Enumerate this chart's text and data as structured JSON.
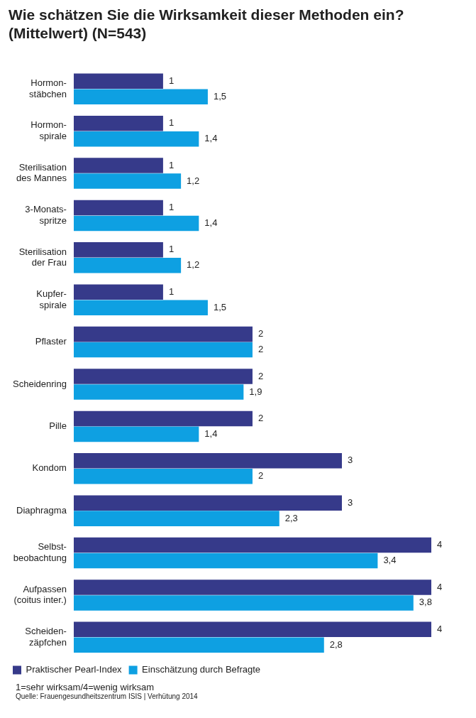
{
  "chart_data": {
    "type": "bar",
    "orientation": "horizontal",
    "title": "Wie schätzen Sie die Wirksamkeit dieser Methoden ein? (Mittelwert) (N=543)",
    "categories": [
      "Hormon-\nstäbchen",
      "Hormon-\nspirale",
      "Sterilisation\ndes Mannes",
      "3-Monats-\nspritze",
      "Sterilisation\nder Frau",
      "Kupfer-\nspirale",
      "Pflaster",
      "Scheidenring",
      "Pille",
      "Kondom",
      "Diaphragma",
      "Selbst-\nbeobachtung",
      "Aufpassen\n(coitus inter.)",
      "Scheiden-\nzäpfchen"
    ],
    "series": [
      {
        "name": "Praktischer Pearl-Index",
        "color": "#363a8a",
        "values": [
          1,
          1,
          1,
          1,
          1,
          1,
          2,
          2,
          2,
          3,
          3,
          4,
          4,
          4
        ],
        "value_labels": [
          "1",
          "1",
          "1",
          "1",
          "1",
          "1",
          "2",
          "2",
          "2",
          "3",
          "3",
          "4",
          "4",
          "4"
        ]
      },
      {
        "name": "Einschätzung durch Befragte",
        "color": "#0ea0e2",
        "values": [
          1.5,
          1.4,
          1.2,
          1.4,
          1.2,
          1.5,
          2,
          1.9,
          1.4,
          2,
          2.3,
          3.4,
          3.8,
          2.8
        ],
        "value_labels": [
          "1,5",
          "1,4",
          "1,2",
          "1,4",
          "1,2",
          "1,5",
          "2",
          "1,9",
          "1,4",
          "2",
          "2,3",
          "3,4",
          "3,8",
          "2,8"
        ]
      }
    ],
    "legend": "bottom",
    "annotations": [
      "1=sehr wirksam/4=wenig wirksam",
      "Quelle: Frauengesundheitszentrum ISIS | Verhütung 2014"
    ]
  }
}
